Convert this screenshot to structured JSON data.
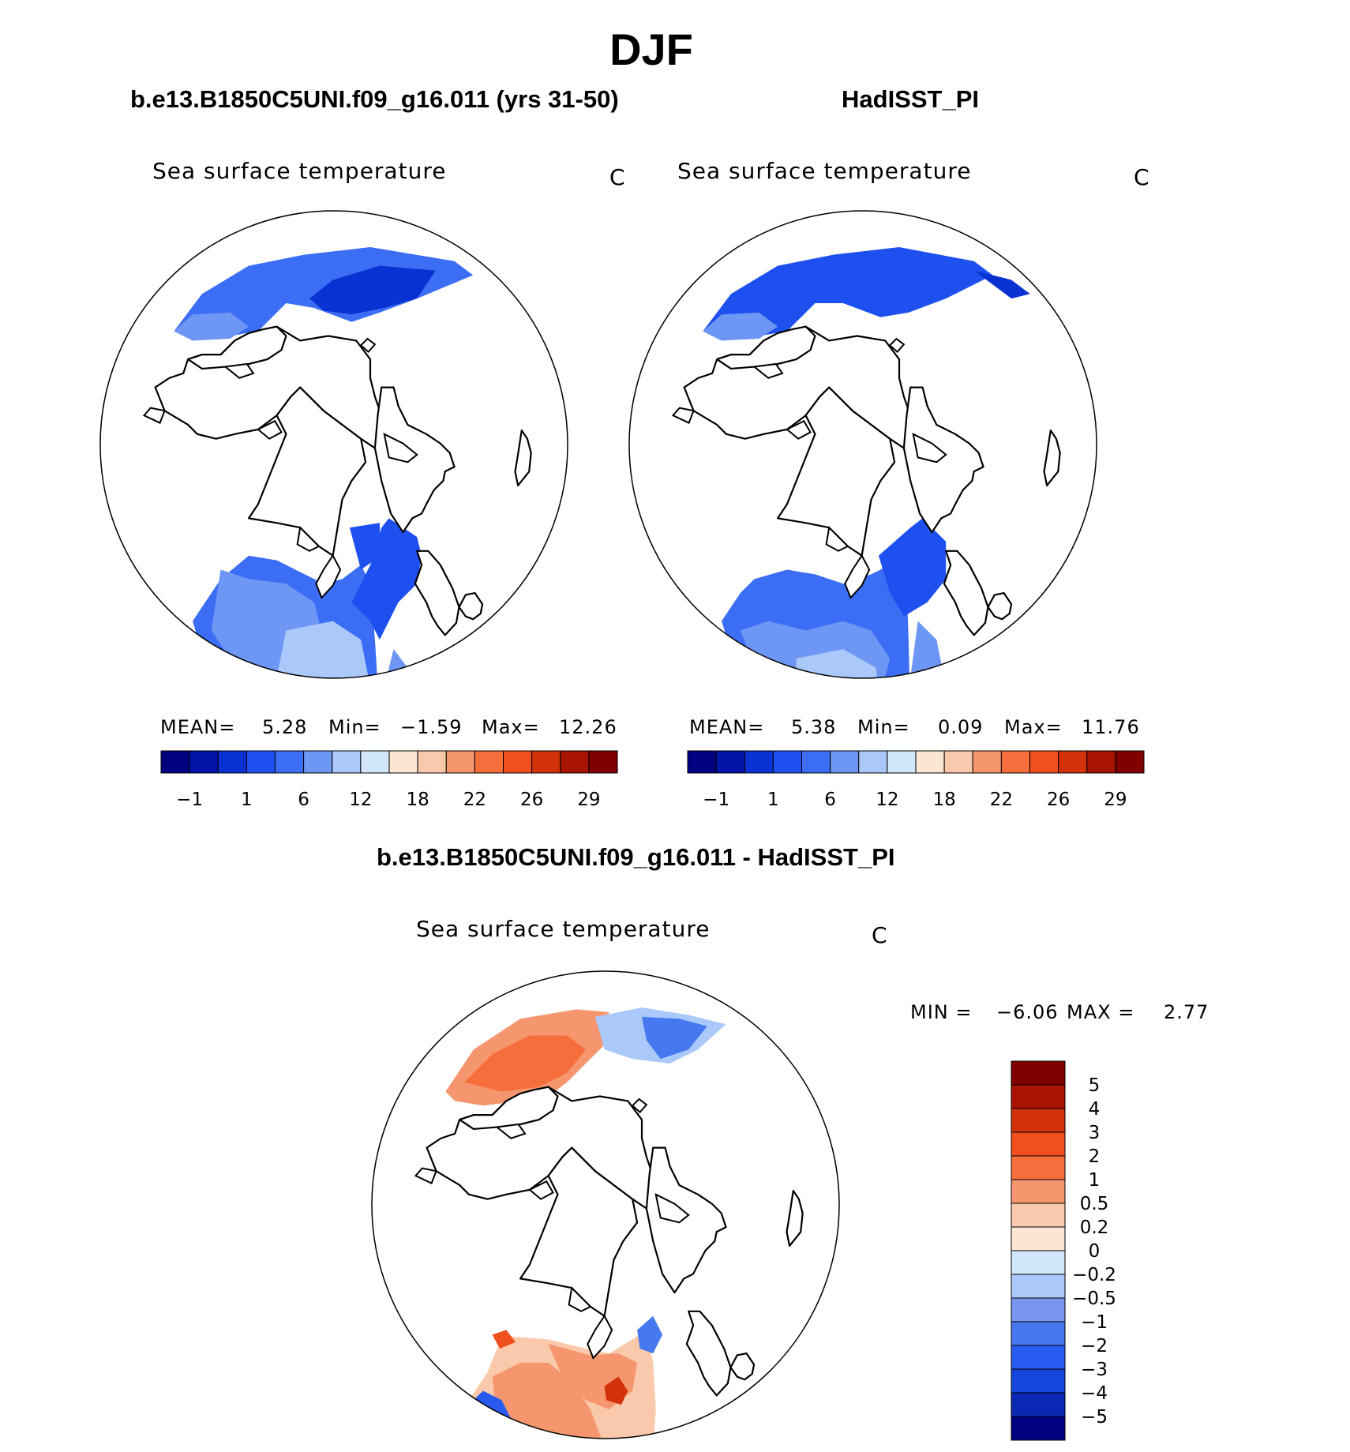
{
  "figure": {
    "title": "DJF",
    "subtitle_left": "b.e13.B1850C5UNI.f09_g16.011 (yrs 31-50)",
    "subtitle_right": "HadISST_PI",
    "subtitle_diff": "b.e13.B1850C5UNI.f09_g16.011 - HadISST_PI"
  },
  "colors": {
    "sst_scale": [
      "#000080",
      "#0014a8",
      "#0a32d2",
      "#1e50f0",
      "#3c6ef5",
      "#6e96f5",
      "#aac8fa",
      "#d2e6fa",
      "#fae6d2",
      "#fac8aa",
      "#f5966e",
      "#f56e3c",
      "#f0501e",
      "#d2320a",
      "#a81400",
      "#800000"
    ],
    "diff_scale": [
      "#000080",
      "#0a28b4",
      "#1446dc",
      "#285af0",
      "#4678f0",
      "#7896f0",
      "#aac8fa",
      "#d2e6fa",
      "#fae6d2",
      "#fac8aa",
      "#f5966e",
      "#f56e3c",
      "#f0501e",
      "#d2320a",
      "#a81400",
      "#800000"
    ],
    "coast": "#000000"
  },
  "chart_data": [
    {
      "type": "heatmap",
      "projection": "north polar stereographic",
      "panel": "model",
      "variable_label": "Sea surface temperature",
      "units": "C",
      "mean_label": "MEAN=",
      "mean": "5.28",
      "min_label": "Min=",
      "min": "−1.59",
      "max_label": "Max=",
      "max": "12.26",
      "colorbar_ticks": [
        "−1",
        "1",
        "6",
        "12",
        "18",
        "22",
        "26",
        "29"
      ]
    },
    {
      "type": "heatmap",
      "projection": "north polar stereographic",
      "panel": "observations",
      "variable_label": "Sea surface temperature",
      "units": "C",
      "mean_label": "MEAN=",
      "mean": "5.38",
      "min_label": "Min=",
      "min": "0.09",
      "max_label": "Max=",
      "max": "11.76",
      "colorbar_ticks": [
        "−1",
        "1",
        "6",
        "12",
        "18",
        "22",
        "26",
        "29"
      ]
    },
    {
      "type": "heatmap",
      "projection": "north polar stereographic",
      "panel": "difference",
      "variable_label": "Sea surface temperature",
      "units": "C",
      "min_label": "MIN =",
      "min": "−6.06",
      "max_label": "MAX =",
      "max": "2.77",
      "colorbar_ticks": [
        "5",
        "4",
        "3",
        "2",
        "1",
        "0.5",
        "0.2",
        "0",
        "−0.2",
        "−0.5",
        "−1",
        "−2",
        "−3",
        "−4",
        "−5"
      ]
    }
  ]
}
